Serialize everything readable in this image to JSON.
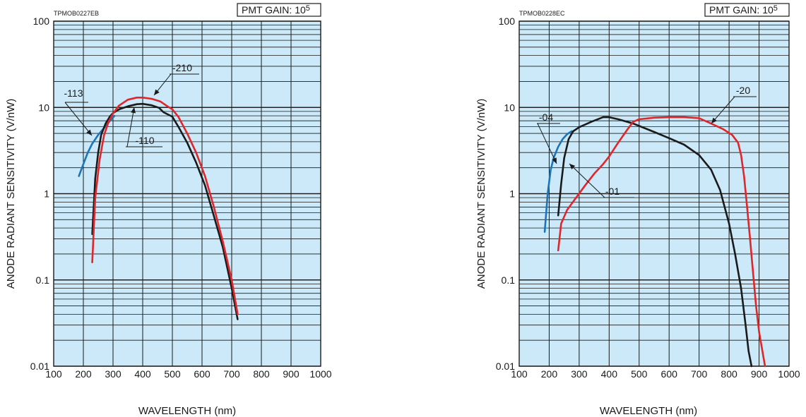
{
  "colors": {
    "plot_bg": "#cbe9f8",
    "grid": "#1a1a1a",
    "black": "#1a1a1a",
    "red": "#e0262b",
    "blue": "#1b75bb"
  },
  "chart_data": [
    {
      "type": "line",
      "code": "TPMOB0227EB",
      "gain_label": "PMT GAIN: 10",
      "gain_exp": "5",
      "ylabel": "ANODE RADIANT SENSITIVITY (V/nW)",
      "xlabel": "WAVELENGTH (nm)",
      "yscale": "log",
      "xlim": [
        100,
        1000
      ],
      "ylim": [
        0.01,
        100
      ],
      "grid": true,
      "x_ticks": [
        "100",
        "200",
        "300",
        "400",
        "500",
        "600",
        "700",
        "800",
        "900",
        "1000"
      ],
      "y_ticks": [
        "0.01",
        "0.1",
        "1",
        "10",
        "100"
      ],
      "series": [
        {
          "name": "-113",
          "color": "blue",
          "x": [
            185,
            200,
            215,
            230,
            250,
            270,
            290,
            305
          ],
          "y": [
            1.6,
            2.2,
            3.0,
            3.8,
            4.8,
            5.8,
            7.0,
            8.0
          ]
        },
        {
          "name": "-110",
          "color": "black",
          "x": [
            230,
            240,
            250,
            260,
            275,
            290,
            300,
            320,
            350,
            380,
            400,
            430,
            455,
            470,
            500,
            520,
            550,
            580,
            610,
            640,
            670,
            700,
            720
          ],
          "y": [
            0.34,
            1.5,
            3.0,
            4.8,
            6.5,
            7.9,
            8.6,
            9.5,
            10.3,
            10.9,
            11.0,
            10.6,
            9.9,
            8.8,
            7.8,
            6.0,
            3.9,
            2.3,
            1.25,
            0.55,
            0.24,
            0.08,
            0.035
          ]
        },
        {
          "name": "-210",
          "color": "red",
          "x": [
            230,
            240,
            255,
            270,
            285,
            300,
            320,
            350,
            380,
            400,
            430,
            460,
            480,
            500,
            520,
            550,
            580,
            610,
            640,
            670,
            700,
            720
          ],
          "y": [
            0.16,
            0.9,
            2.5,
            4.8,
            6.8,
            8.5,
            10.5,
            12.3,
            13.0,
            13.0,
            12.6,
            11.7,
            10.5,
            9.5,
            7.8,
            5.0,
            3.0,
            1.6,
            0.7,
            0.28,
            0.1,
            0.04
          ]
        }
      ],
      "annotations": [
        "-113",
        "-110",
        "-210"
      ]
    },
    {
      "type": "line",
      "code": "TPMOB0228EC",
      "gain_label": "PMT GAIN: 10",
      "gain_exp": "5",
      "ylabel": "ANODE RADIANT SENSITIVITY (V/nW)",
      "xlabel": "WAVELENGTH (nm)",
      "yscale": "log",
      "xlim": [
        100,
        1000
      ],
      "ylim": [
        0.01,
        100
      ],
      "grid": true,
      "x_ticks": [
        "100",
        "200",
        "300",
        "400",
        "500",
        "600",
        "700",
        "800",
        "900",
        "1000"
      ],
      "y_ticks": [
        "0.01",
        "0.1",
        "1",
        "10",
        "100"
      ],
      "series": [
        {
          "name": "-04",
          "color": "blue",
          "x": [
            185,
            195,
            205,
            215,
            230,
            245,
            260,
            275
          ],
          "y": [
            0.36,
            1.0,
            1.9,
            2.6,
            3.5,
            4.3,
            4.9,
            5.3
          ]
        },
        {
          "name": "-01",
          "color": "black",
          "x": [
            230,
            240,
            250,
            265,
            280,
            300,
            340,
            380,
            400,
            430,
            480,
            550,
            600,
            650,
            700,
            740,
            770,
            800,
            820,
            840,
            855,
            865,
            875
          ],
          "y": [
            0.56,
            1.3,
            2.6,
            4.3,
            5.3,
            5.9,
            6.8,
            7.7,
            7.7,
            7.3,
            6.5,
            5.2,
            4.4,
            3.7,
            2.8,
            1.9,
            1.1,
            0.45,
            0.2,
            0.08,
            0.03,
            0.015,
            0.01
          ]
        },
        {
          "name": "-20",
          "color": "red",
          "x": [
            230,
            240,
            260,
            290,
            320,
            350,
            380,
            400,
            430,
            460,
            480,
            500,
            550,
            600,
            650,
            700,
            740,
            780,
            810,
            830,
            840,
            850,
            860,
            870,
            880,
            890,
            900,
            920
          ],
          "y": [
            0.22,
            0.45,
            0.65,
            0.9,
            1.25,
            1.7,
            2.2,
            2.7,
            3.9,
            5.5,
            6.8,
            7.3,
            7.6,
            7.7,
            7.7,
            7.5,
            6.5,
            5.6,
            4.8,
            3.9,
            2.8,
            1.6,
            0.7,
            0.3,
            0.12,
            0.05,
            0.025,
            0.01
          ]
        }
      ],
      "annotations": [
        "-04",
        "-01",
        "-20"
      ]
    }
  ]
}
